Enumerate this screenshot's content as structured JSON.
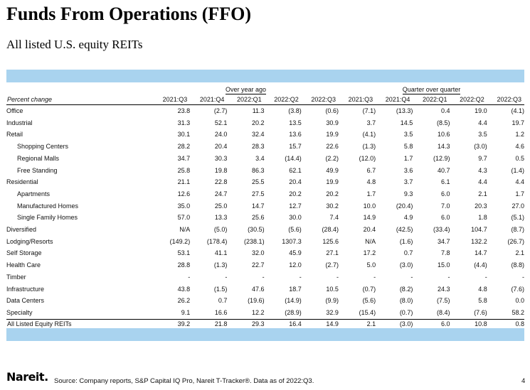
{
  "title": "Funds From Operations (FFO)",
  "subtitle": "All listed U.S. equity REITs",
  "table": {
    "label_header": "Percent change",
    "groups": [
      "Over year ago",
      "Quarter over quarter"
    ],
    "columns": [
      "2021:Q3",
      "2021:Q4",
      "2022:Q1",
      "2022:Q2",
      "2022:Q3"
    ],
    "rows": [
      {
        "label": "Office",
        "sub": false,
        "yoy": [
          "23.8",
          "(2.7)",
          "11.3",
          "(3.8)",
          "(0.6)"
        ],
        "qoq": [
          "(7.1)",
          "(13.3)",
          "0.4",
          "19.0",
          "(4.1)"
        ]
      },
      {
        "label": "Industrial",
        "sub": false,
        "yoy": [
          "31.3",
          "52.1",
          "20.2",
          "13.5",
          "30.9"
        ],
        "qoq": [
          "3.7",
          "14.5",
          "(8.5)",
          "4.4",
          "19.7"
        ]
      },
      {
        "label": "Retail",
        "sub": false,
        "yoy": [
          "30.1",
          "24.0",
          "32.4",
          "13.6",
          "19.9"
        ],
        "qoq": [
          "(4.1)",
          "3.5",
          "10.6",
          "3.5",
          "1.2"
        ]
      },
      {
        "label": "Shopping Centers",
        "sub": true,
        "yoy": [
          "28.2",
          "20.4",
          "28.3",
          "15.7",
          "22.6"
        ],
        "qoq": [
          "(1.3)",
          "5.8",
          "14.3",
          "(3.0)",
          "4.6"
        ]
      },
      {
        "label": "Regional Malls",
        "sub": true,
        "yoy": [
          "34.7",
          "30.3",
          "3.4",
          "(14.4)",
          "(2.2)"
        ],
        "qoq": [
          "(12.0)",
          "1.7",
          "(12.9)",
          "9.7",
          "0.5"
        ]
      },
      {
        "label": "Free Standing",
        "sub": true,
        "yoy": [
          "25.8",
          "19.8",
          "86.3",
          "62.1",
          "49.9"
        ],
        "qoq": [
          "6.7",
          "3.6",
          "40.7",
          "4.3",
          "(1.4)"
        ]
      },
      {
        "label": "Residential",
        "sub": false,
        "yoy": [
          "21.1",
          "22.8",
          "25.5",
          "20.4",
          "19.9"
        ],
        "qoq": [
          "4.8",
          "3.7",
          "6.1",
          "4.4",
          "4.4"
        ]
      },
      {
        "label": "Apartments",
        "sub": true,
        "yoy": [
          "12.6",
          "24.7",
          "27.5",
          "20.2",
          "20.2"
        ],
        "qoq": [
          "1.7",
          "9.3",
          "6.0",
          "2.1",
          "1.7"
        ]
      },
      {
        "label": "Manufactured Homes",
        "sub": true,
        "yoy": [
          "35.0",
          "25.0",
          "14.7",
          "12.7",
          "30.2"
        ],
        "qoq": [
          "10.0",
          "(20.4)",
          "7.0",
          "20.3",
          "27.0"
        ]
      },
      {
        "label": "Single Family Homes",
        "sub": true,
        "yoy": [
          "57.0",
          "13.3",
          "25.6",
          "30.0",
          "7.4"
        ],
        "qoq": [
          "14.9",
          "4.9",
          "6.0",
          "1.8",
          "(5.1)"
        ]
      },
      {
        "label": "Diversified",
        "sub": false,
        "yoy": [
          "N/A",
          "(5.0)",
          "(30.5)",
          "(5.6)",
          "(28.4)"
        ],
        "qoq": [
          "20.4",
          "(42.5)",
          "(33.4)",
          "104.7",
          "(8.7)"
        ]
      },
      {
        "label": "Lodging/Resorts",
        "sub": false,
        "yoy": [
          "(149.2)",
          "(178.4)",
          "(238.1)",
          "1307.3",
          "125.6"
        ],
        "qoq": [
          "N/A",
          "(1.6)",
          "34.7",
          "132.2",
          "(26.7)"
        ]
      },
      {
        "label": "Self Storage",
        "sub": false,
        "yoy": [
          "53.1",
          "41.1",
          "32.0",
          "45.9",
          "27.1"
        ],
        "qoq": [
          "17.2",
          "0.7",
          "7.8",
          "14.7",
          "2.1"
        ]
      },
      {
        "label": "Health Care",
        "sub": false,
        "yoy": [
          "28.8",
          "(1.3)",
          "22.7",
          "12.0",
          "(2.7)"
        ],
        "qoq": [
          "5.0",
          "(3.0)",
          "15.0",
          "(4.4)",
          "(8.8)"
        ]
      },
      {
        "label": "Timber",
        "sub": false,
        "yoy": [
          "-",
          "-",
          "-",
          "-",
          "-"
        ],
        "qoq": [
          "-",
          "-",
          "-",
          "-",
          "-"
        ]
      },
      {
        "label": "Infrastructure",
        "sub": false,
        "yoy": [
          "43.8",
          "(1.5)",
          "47.6",
          "18.7",
          "10.5"
        ],
        "qoq": [
          "(0.7)",
          "(8.2)",
          "24.3",
          "4.8",
          "(7.6)"
        ]
      },
      {
        "label": "Data Centers",
        "sub": false,
        "yoy": [
          "26.2",
          "0.7",
          "(19.6)",
          "(14.9)",
          "(9.9)"
        ],
        "qoq": [
          "(5.6)",
          "(8.0)",
          "(7.5)",
          "5.8",
          "0.0"
        ]
      },
      {
        "label": "Specialty",
        "sub": false,
        "yoy": [
          "9.1",
          "16.6",
          "12.2",
          "(28.9)",
          "32.9"
        ],
        "qoq": [
          "(15.4)",
          "(0.7)",
          "(8.4)",
          "(7.6)",
          "58.2"
        ]
      }
    ],
    "total": {
      "label": "All Listed Equity REITs",
      "yoy": [
        "39.2",
        "21.8",
        "29.3",
        "16.4",
        "14.9"
      ],
      "qoq": [
        "2.1",
        "(3.0)",
        "6.0",
        "10.8",
        "0.8"
      ]
    }
  },
  "footer": {
    "logo": "Nareit.",
    "source": "Source: Company reports, S&P Capital IQ Pro, Nareit T-Tracker®. Data as of 2022:Q3.",
    "page_number": "4"
  },
  "colors": {
    "band": "#a9d3ef"
  }
}
